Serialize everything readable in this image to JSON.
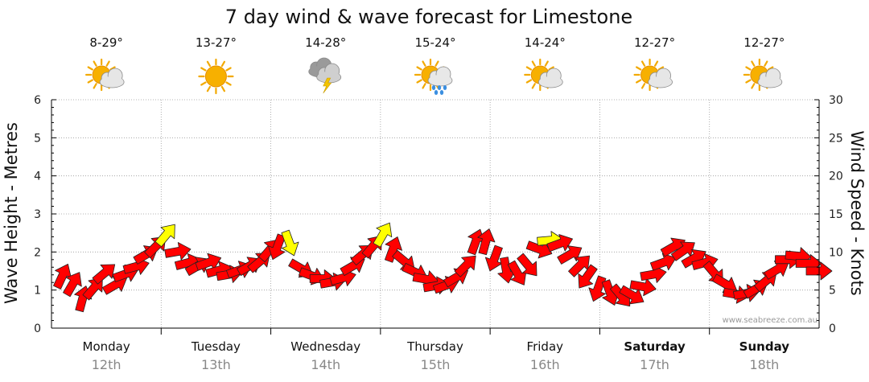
{
  "chart_data": {
    "type": "wind-wave-forecast",
    "title": "7 day wind & wave forecast for Limestone",
    "ylabel_left": "Wave Height - Metres",
    "ylabel_right": "Wind Speed - Knots",
    "ylim_left": [
      0,
      6
    ],
    "ylim_right": [
      0,
      30
    ],
    "left_ticks": [
      "0",
      "1",
      "2",
      "3",
      "4",
      "5",
      "6"
    ],
    "right_ticks": [
      "0",
      "5",
      "10",
      "15",
      "20",
      "25",
      "30"
    ],
    "watermark": "www.seabreeze.com.au",
    "days": [
      {
        "name": "Monday",
        "date": "12th",
        "temp": "8-29°",
        "weather": "partly-cloudy",
        "bold": false
      },
      {
        "name": "Tuesday",
        "date": "13th",
        "temp": "13-27°",
        "weather": "sunny",
        "bold": false
      },
      {
        "name": "Wednesday",
        "date": "14th",
        "temp": "14-28°",
        "weather": "thunderstorm",
        "bold": false
      },
      {
        "name": "Thursday",
        "date": "15th",
        "temp": "15-24°",
        "weather": "sun-showers",
        "bold": false
      },
      {
        "name": "Friday",
        "date": "16th",
        "temp": "14-24°",
        "weather": "partly-cloudy",
        "bold": false
      },
      {
        "name": "Saturday",
        "date": "17th",
        "temp": "12-27°",
        "weather": "partly-cloudy",
        "bold": true
      },
      {
        "name": "Sunday",
        "date": "18th",
        "temp": "12-27°",
        "weather": "partly-cloudy",
        "bold": true
      }
    ],
    "wind_knots": [
      6.5,
      5.5,
      3.5,
      5,
      7,
      5.5,
      7,
      8,
      9.5,
      10.5,
      12,
      10,
      8.5,
      8,
      8.5,
      7.5,
      7,
      7.5,
      8,
      8.5,
      10,
      11,
      11.5,
      8,
      7,
      6.5,
      6,
      6.5,
      8,
      9.5,
      10.5,
      12,
      10,
      9,
      7.5,
      6.5,
      5.5,
      5.5,
      6.5,
      8,
      11,
      11,
      9.5,
      8,
      7.5,
      8.5,
      10.5,
      11.5,
      11,
      9.5,
      8,
      7,
      5.5,
      5,
      4.5,
      4.5,
      5.5,
      7,
      8.5,
      10.5,
      10,
      9,
      8.5,
      7.5,
      6,
      4.5,
      4.5,
      5,
      6,
      7.5,
      9,
      9.5,
      8.5,
      7.5
    ],
    "wind_dir_deg": [
      25,
      30,
      15,
      40,
      50,
      60,
      70,
      75,
      60,
      45,
      40,
      80,
      75,
      60,
      70,
      75,
      80,
      70,
      60,
      50,
      40,
      200,
      160,
      120,
      110,
      90,
      80,
      75,
      60,
      50,
      40,
      30,
      20,
      130,
      115,
      100,
      80,
      70,
      60,
      45,
      20,
      15,
      200,
      170,
      150,
      140,
      110,
      85,
      70,
      60,
      45,
      215,
      200,
      160,
      140,
      120,
      100,
      80,
      70,
      60,
      55,
      60,
      75,
      140,
      120,
      100,
      80,
      60,
      50,
      60,
      90,
      95,
      90,
      90
    ]
  }
}
